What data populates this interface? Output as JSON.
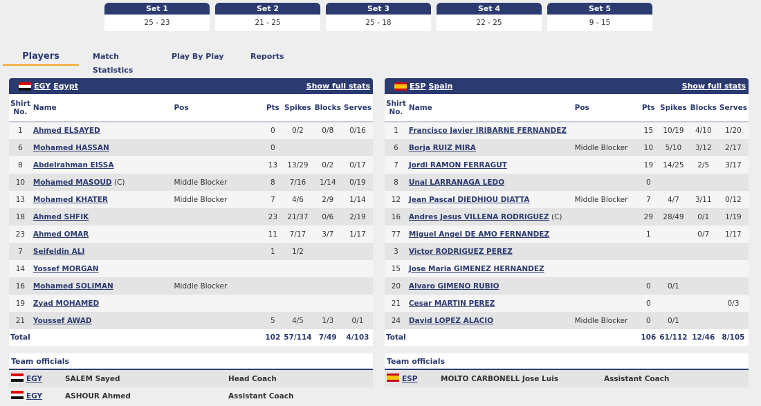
{
  "sets": [
    {
      "label": "Set 1",
      "score": "25 - 23"
    },
    {
      "label": "Set 2",
      "score": "21 - 25"
    },
    {
      "label": "Set 3",
      "score": "25 - 18"
    },
    {
      "label": "Set 4",
      "score": "22 - 25"
    },
    {
      "label": "Set 5",
      "score": "9 - 15"
    }
  ],
  "tabs": [
    "Players",
    "Match Statistics",
    "Play By Play",
    "Reports"
  ],
  "columns": {
    "shirt": "Shirt No.",
    "name": "Name",
    "pos": "Pos",
    "pts": "Pts",
    "spikes": "Spikes",
    "blocks": "Blocks",
    "serves": "Serves"
  },
  "show_full_stats": "Show full stats",
  "total_label": "Total",
  "officials_label": "Team officials",
  "teams": [
    {
      "code": "EGY",
      "name": "Egypt",
      "players": [
        {
          "shirt": "1",
          "name": "Ahmed ELSAYED",
          "cap": "",
          "pos": "",
          "pts": "0",
          "spikes": "0/2",
          "blocks": "0/8",
          "serves": "0/16"
        },
        {
          "shirt": "6",
          "name": "Mohamed HASSAN",
          "cap": "",
          "pos": "",
          "pts": "0",
          "spikes": "",
          "blocks": "",
          "serves": ""
        },
        {
          "shirt": "8",
          "name": "Abdelrahman EISSA",
          "cap": "",
          "pos": "",
          "pts": "13",
          "spikes": "13/29",
          "blocks": "0/2",
          "serves": "0/17"
        },
        {
          "shirt": "10",
          "name": "Mohamed MASOUD",
          "cap": "(C)",
          "pos": "Middle Blocker",
          "pts": "8",
          "spikes": "7/16",
          "blocks": "1/14",
          "serves": "0/19"
        },
        {
          "shirt": "13",
          "name": "Mohamed KHATER",
          "cap": "",
          "pos": "Middle Blocker",
          "pts": "7",
          "spikes": "4/6",
          "blocks": "2/9",
          "serves": "1/14"
        },
        {
          "shirt": "18",
          "name": "Ahmed SHFIK",
          "cap": "",
          "pos": "",
          "pts": "23",
          "spikes": "21/37",
          "blocks": "0/6",
          "serves": "2/19"
        },
        {
          "shirt": "23",
          "name": "Ahmed OMAR",
          "cap": "",
          "pos": "",
          "pts": "11",
          "spikes": "7/17",
          "blocks": "3/7",
          "serves": "1/17"
        },
        {
          "shirt": "7",
          "name": "Seifeldin ALI",
          "cap": "",
          "pos": "",
          "pts": "1",
          "spikes": "1/2",
          "blocks": "",
          "serves": ""
        },
        {
          "shirt": "14",
          "name": "Yossef MORGAN",
          "cap": "",
          "pos": "",
          "pts": "",
          "spikes": "",
          "blocks": "",
          "serves": ""
        },
        {
          "shirt": "16",
          "name": "Mohamed SOLIMAN",
          "cap": "",
          "pos": "Middle Blocker",
          "pts": "",
          "spikes": "",
          "blocks": "",
          "serves": ""
        },
        {
          "shirt": "19",
          "name": "Zyad MOHAMED",
          "cap": "",
          "pos": "",
          "pts": "",
          "spikes": "",
          "blocks": "",
          "serves": ""
        },
        {
          "shirt": "21",
          "name": "Youssef AWAD",
          "cap": "",
          "pos": "",
          "pts": "5",
          "spikes": "4/5",
          "blocks": "1/3",
          "serves": "0/1"
        }
      ],
      "total": {
        "pts": "102",
        "spikes": "57/114",
        "blocks": "7/49",
        "serves": "4/103"
      },
      "officials": [
        {
          "code": "EGY",
          "name": "SALEM Sayed",
          "role": "Head Coach"
        },
        {
          "code": "EGY",
          "name": "ASHOUR Ahmed",
          "role": "Assistant Coach"
        }
      ]
    },
    {
      "code": "ESP",
      "name": "Spain",
      "players": [
        {
          "shirt": "1",
          "name": "Francisco Javier IRIBARNE FERNANDEZ",
          "cap": "",
          "pos": "",
          "pts": "15",
          "spikes": "10/19",
          "blocks": "4/10",
          "serves": "1/20"
        },
        {
          "shirt": "6",
          "name": "Borja RUIZ MIRA",
          "cap": "",
          "pos": "Middle Blocker",
          "pts": "10",
          "spikes": "5/10",
          "blocks": "3/12",
          "serves": "2/17"
        },
        {
          "shirt": "7",
          "name": "Jordi RAMON FERRAGUT",
          "cap": "",
          "pos": "",
          "pts": "19",
          "spikes": "14/25",
          "blocks": "2/5",
          "serves": "3/17"
        },
        {
          "shirt": "8",
          "name": "Unai LARRANAGA LEDO",
          "cap": "",
          "pos": "",
          "pts": "0",
          "spikes": "",
          "blocks": "",
          "serves": ""
        },
        {
          "shirt": "12",
          "name": "Jean Pascal DIEDHIOU DIATTA",
          "cap": "",
          "pos": "Middle Blocker",
          "pts": "7",
          "spikes": "4/7",
          "blocks": "3/11",
          "serves": "0/12"
        },
        {
          "shirt": "16",
          "name": "Andres Jesus VILLENA RODRIGUEZ",
          "cap": "(C)",
          "pos": "",
          "pts": "29",
          "spikes": "28/49",
          "blocks": "0/1",
          "serves": "1/19"
        },
        {
          "shirt": "77",
          "name": "Miguel Angel DE AMO FERNANDEZ",
          "cap": "",
          "pos": "",
          "pts": "1",
          "spikes": "",
          "blocks": "0/7",
          "serves": "1/17"
        },
        {
          "shirt": "3",
          "name": "Victor RODRIGUEZ PEREZ",
          "cap": "",
          "pos": "",
          "pts": "",
          "spikes": "",
          "blocks": "",
          "serves": ""
        },
        {
          "shirt": "15",
          "name": "Jose Maria GIMENEZ HERNANDEZ",
          "cap": "",
          "pos": "",
          "pts": "",
          "spikes": "",
          "blocks": "",
          "serves": ""
        },
        {
          "shirt": "20",
          "name": "Alvaro GIMENO RUBIO",
          "cap": "",
          "pos": "",
          "pts": "0",
          "spikes": "0/1",
          "blocks": "",
          "serves": ""
        },
        {
          "shirt": "21",
          "name": "Cesar MARTIN PEREZ",
          "cap": "",
          "pos": "",
          "pts": "0",
          "spikes": "",
          "blocks": "",
          "serves": "0/3"
        },
        {
          "shirt": "24",
          "name": "David LOPEZ ALACIO",
          "cap": "",
          "pos": "Middle Blocker",
          "pts": "0",
          "spikes": "0/1",
          "blocks": "",
          "serves": ""
        }
      ],
      "total": {
        "pts": "106",
        "spikes": "61/112",
        "blocks": "12/46",
        "serves": "8/105"
      },
      "officials": [
        {
          "code": "ESP",
          "name": "MOLTO CARBONELL Jose Luis",
          "role": "Assistant Coach"
        }
      ]
    }
  ]
}
